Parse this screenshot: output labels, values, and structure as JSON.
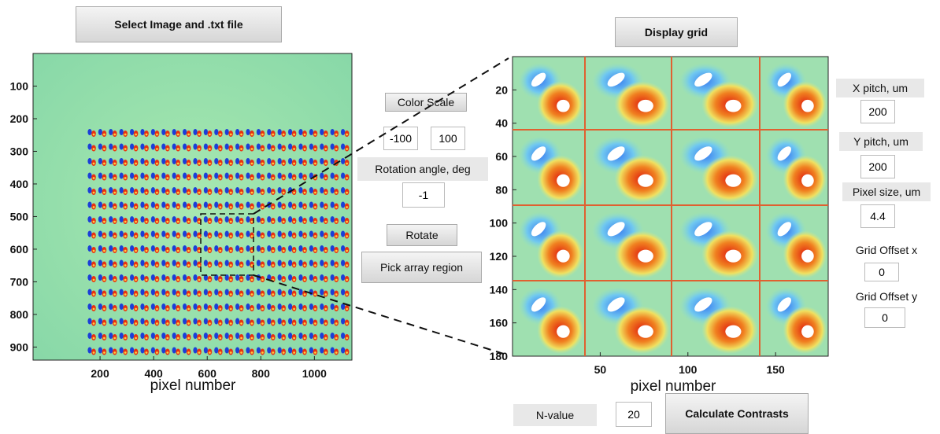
{
  "buttons": {
    "select": "Select Image and .txt file",
    "display_grid": "Display grid",
    "color_scale": "Color Scale",
    "rotate": "Rotate",
    "pick_region": "Pick array region",
    "calculate": "Calculate Contrasts"
  },
  "left_image": {
    "xlabel": "pixel number",
    "xticks": [
      200,
      400,
      600,
      800,
      1000
    ],
    "yticks": [
      100,
      200,
      300,
      400,
      500,
      600,
      700,
      800,
      900
    ],
    "xlim": [
      -50,
      1140
    ],
    "ylim": [
      0,
      940
    ]
  },
  "right_image": {
    "xlabel": "pixel number",
    "xticks": [
      50,
      100,
      150
    ],
    "yticks": [
      20,
      40,
      60,
      80,
      100,
      120,
      140,
      160,
      180
    ],
    "xlim": [
      0,
      180
    ],
    "ylim": [
      0,
      180
    ]
  },
  "color_scale": {
    "min": -100,
    "max": 100
  },
  "rotation": {
    "label": "Rotation angle, deg",
    "value": -1
  },
  "x_pitch": {
    "label": "X pitch, um",
    "value": 200
  },
  "y_pitch": {
    "label": "Y pitch, um",
    "value": 200
  },
  "pixel_size": {
    "label": "Pixel size, um",
    "value": 4.4
  },
  "grid_offset_x": {
    "label": "Grid Offset x",
    "value": 0
  },
  "grid_offset_y": {
    "label": "Grid Offset y",
    "value": 0
  },
  "n_value": {
    "label": "N-value",
    "value": 20
  }
}
